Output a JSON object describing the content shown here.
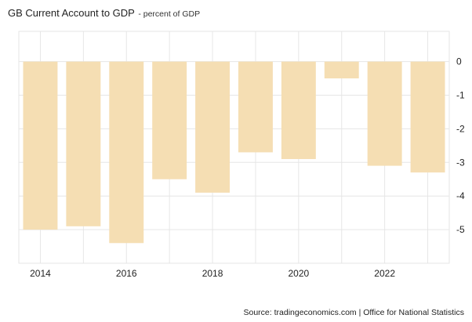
{
  "header": {
    "title": "GB Current Account to GDP",
    "subtitle": "- percent of GDP"
  },
  "footer": {
    "source": "Source: tradingeconomics.com | Office for National Statistics"
  },
  "colors": {
    "bar": "#f5deb3",
    "grid": "#e6e6e6",
    "text": "#222222"
  },
  "chart_data": {
    "type": "bar",
    "title": "GB Current Account to GDP - percent of GDP",
    "xlabel": "",
    "ylabel": "",
    "categories": [
      "2014",
      "2015",
      "2016",
      "2017",
      "2018",
      "2019",
      "2020",
      "2021",
      "2022",
      "2023"
    ],
    "values": [
      -5.0,
      -4.9,
      -5.4,
      -3.5,
      -3.9,
      -2.7,
      -2.9,
      -0.5,
      -3.1,
      -3.3
    ],
    "x_tick_labels": [
      "2014",
      "2016",
      "2018",
      "2020",
      "2022"
    ],
    "y_ticks": [
      0,
      -1,
      -2,
      -3,
      -4,
      -5
    ],
    "ylim": [
      -6,
      0.9
    ],
    "grid": true,
    "y_axis_side": "right"
  }
}
